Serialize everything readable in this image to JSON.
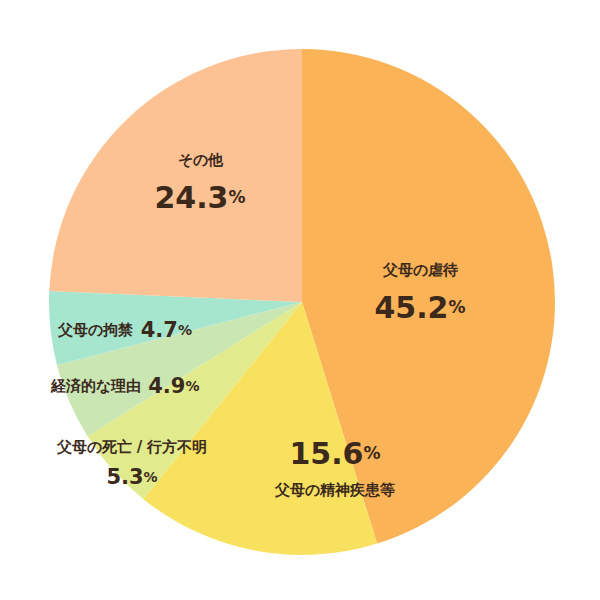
{
  "chart_data": {
    "type": "pie",
    "categories": [
      "父母の虐待",
      "父母の精神疾患等",
      "父母の死亡 / 行方不明",
      "経済的な理由",
      "父母の拘禁",
      "その他"
    ],
    "values": [
      45.2,
      15.6,
      5.3,
      4.9,
      4.7,
      24.3
    ],
    "value_labels": [
      "45.2%",
      "15.6%",
      "5.3%",
      "4.9%",
      "4.7%",
      "24.3%"
    ],
    "colors": [
      "#fbb357",
      "#f8e15f",
      "#e1eb8e",
      "#c9e6b3",
      "#a6e6cf",
      "#fdc293"
    ],
    "data_labels": true
  }
}
